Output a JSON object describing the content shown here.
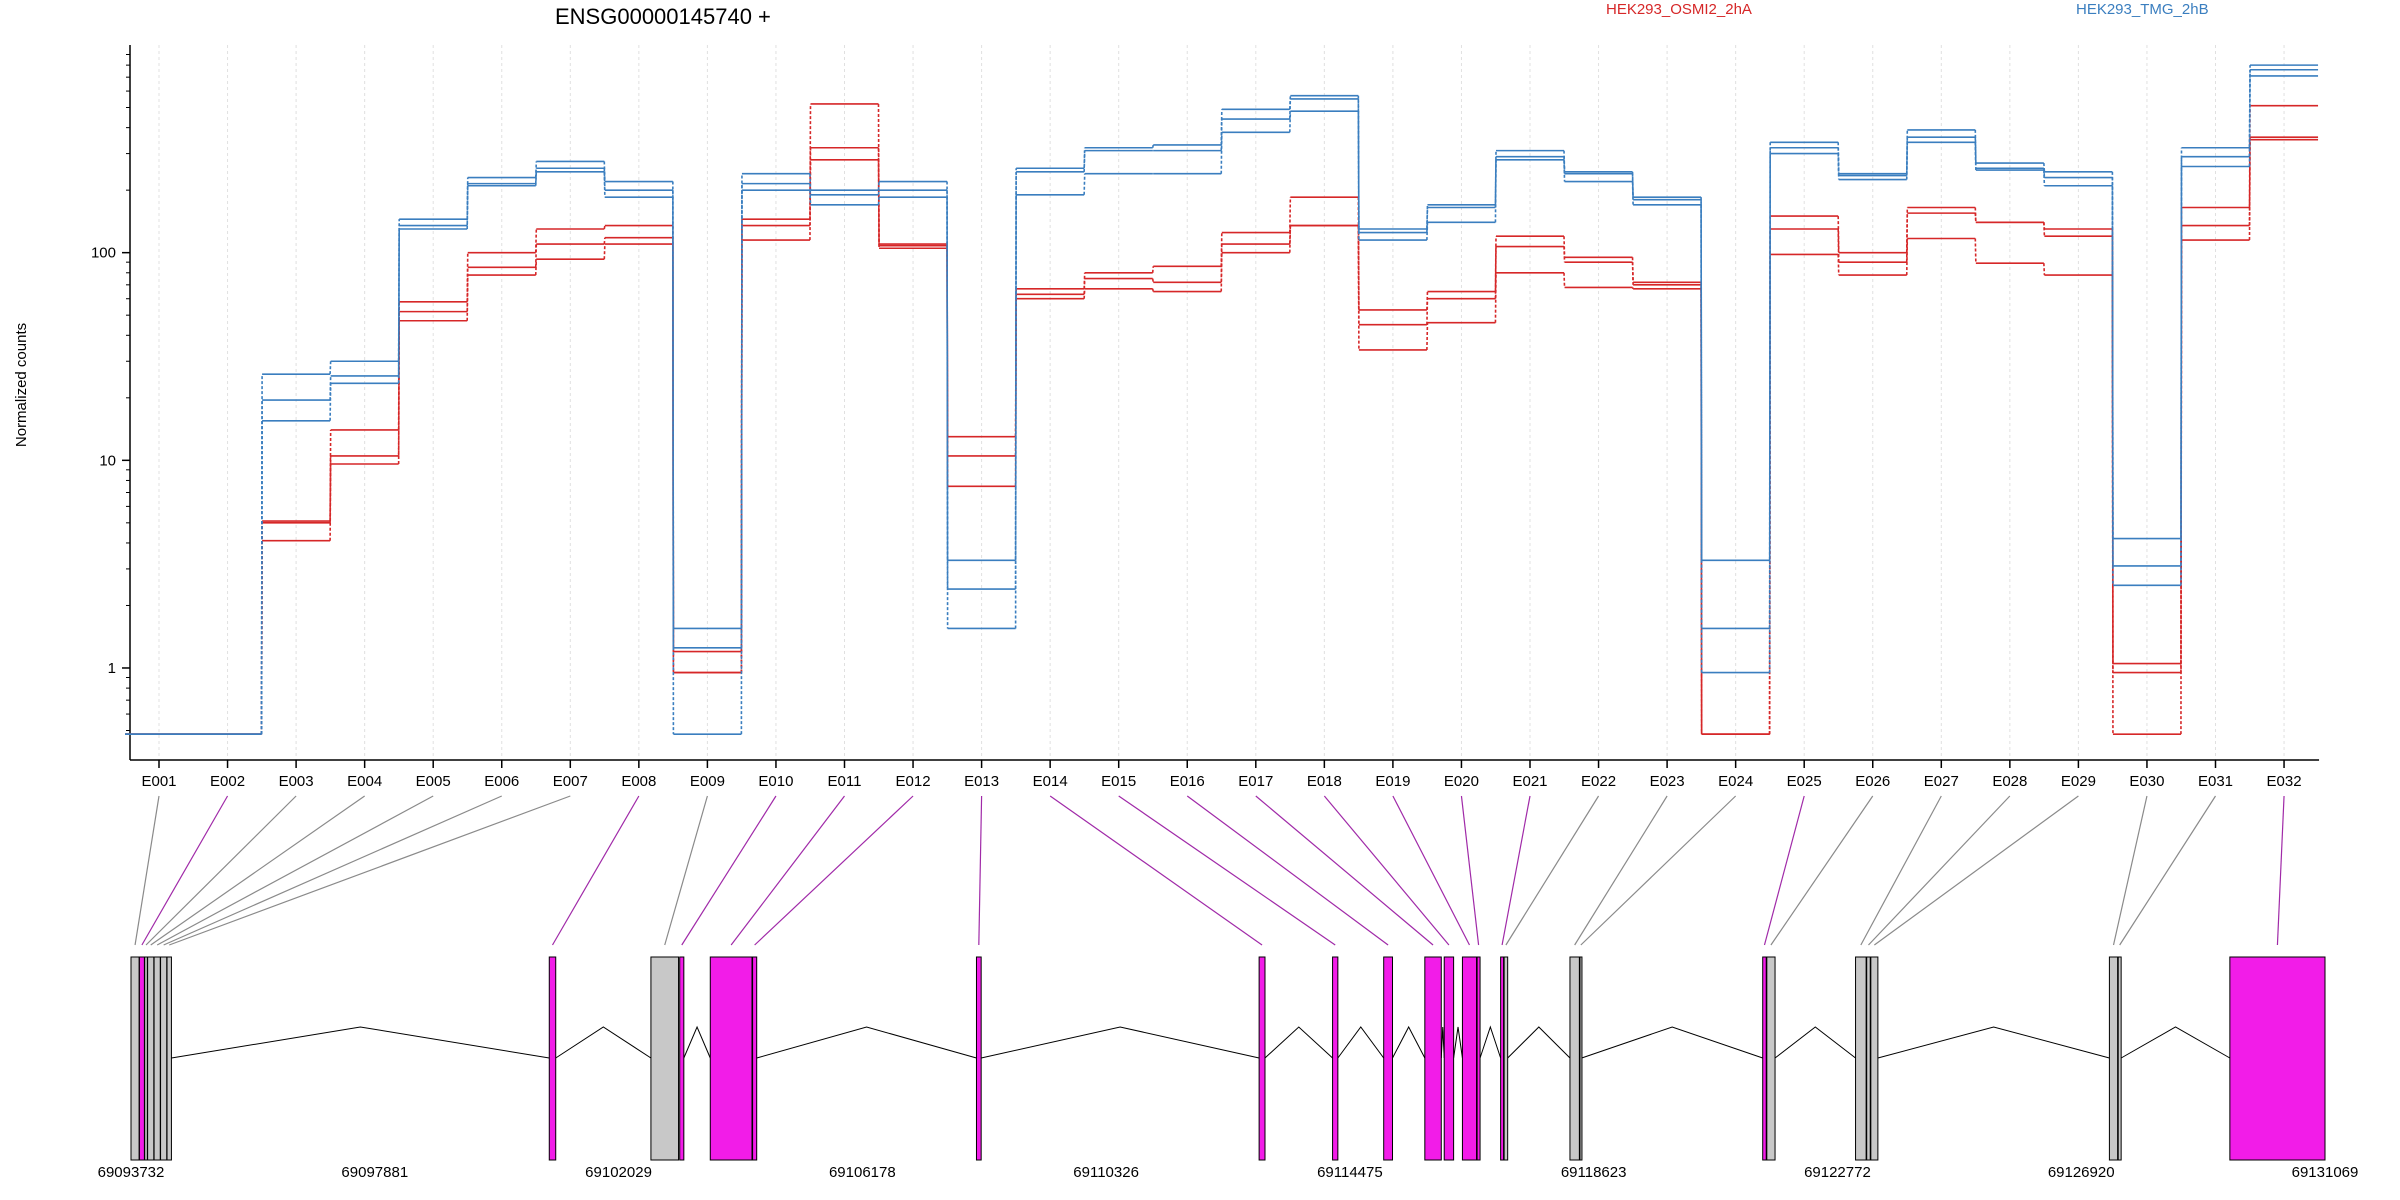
{
  "chart_data": {
    "type": "line",
    "title": "ENSG00000145740 +",
    "ylabel": "Normalized counts",
    "yscale": "log",
    "ylim": [
      0.45,
      1000
    ],
    "yticks": [
      1,
      10,
      100
    ],
    "ytick_labels": [
      "1",
      "10",
      "100"
    ],
    "grid": "vertical dotted at exon centers",
    "legend_placement": "top",
    "categories": [
      "E001",
      "E002",
      "E003",
      "E004",
      "E005",
      "E006",
      "E007",
      "E008",
      "E009",
      "E010",
      "E011",
      "E012",
      "E013",
      "E014",
      "E015",
      "E016",
      "E017",
      "E018",
      "E019",
      "E020",
      "E021",
      "E022",
      "E023",
      "E024",
      "E025",
      "E026",
      "E027",
      "E028",
      "E029",
      "E030",
      "E031",
      "E032"
    ],
    "groups": [
      {
        "name": "HEK293_OSMI2_2hA",
        "color": "#d62728"
      },
      {
        "name": "HEK293_TMG_2hB",
        "color": "#3a7ebf"
      }
    ],
    "series": [
      {
        "group": 0,
        "values": [
          0.48,
          0.48,
          5.1,
          14,
          58,
          100,
          130,
          135,
          1.2,
          145,
          520,
          105,
          13,
          67,
          80,
          86,
          125,
          185,
          53,
          65,
          120,
          95,
          72,
          0.48,
          150,
          100,
          165,
          140,
          130,
          1.05,
          165,
          510
        ]
      },
      {
        "group": 0,
        "values": [
          0.48,
          0.48,
          5.0,
          10.5,
          52,
          85,
          110,
          118,
          0.95,
          135,
          320,
          108,
          10.5,
          63,
          75,
          72,
          110,
          135,
          45,
          60,
          107,
          90,
          70,
          0.48,
          130,
          90,
          155,
          140,
          120,
          0.95,
          135,
          360
        ]
      },
      {
        "group": 0,
        "values": [
          0.48,
          0.48,
          4.1,
          9.6,
          47,
          78,
          93,
          110,
          0.95,
          115,
          280,
          110,
          7.5,
          60,
          67,
          65,
          100,
          135,
          34,
          46,
          80,
          68,
          67,
          0.48,
          98,
          78,
          117,
          89,
          78,
          0.48,
          115,
          350
        ]
      },
      {
        "group": 1,
        "values": [
          0.48,
          0.48,
          26,
          30,
          145,
          230,
          275,
          220,
          1.55,
          240,
          200,
          220,
          3.3,
          255,
          320,
          330,
          490,
          570,
          130,
          170,
          310,
          245,
          185,
          3.3,
          340,
          240,
          390,
          270,
          245,
          4.2,
          320,
          800
        ]
      },
      {
        "group": 1,
        "values": [
          0.48,
          0.48,
          19.5,
          25.5,
          135,
          215,
          255,
          200,
          1.25,
          215,
          190,
          200,
          2.4,
          245,
          310,
          310,
          440,
          550,
          125,
          165,
          290,
          240,
          180,
          1.55,
          320,
          235,
          360,
          255,
          230,
          3.1,
          290,
          760
        ]
      },
      {
        "group": 1,
        "values": [
          0.48,
          0.48,
          15.5,
          23.5,
          130,
          210,
          245,
          185,
          0.48,
          200,
          170,
          185,
          1.55,
          190,
          240,
          240,
          380,
          480,
          115,
          140,
          280,
          220,
          170,
          0.95,
          300,
          225,
          340,
          250,
          210,
          2.5,
          260,
          710
        ]
      }
    ],
    "gene_model": {
      "coordinate_ticks": [
        "69093732",
        "69097881",
        "69102029",
        "69106178",
        "69110326",
        "69114475",
        "69118623",
        "69122772",
        "69126920",
        "69131069"
      ],
      "coordinate_values": [
        69093732,
        69097881,
        69102029,
        69106178,
        69110326,
        69114475,
        69118623,
        69122772,
        69126920,
        69131069
      ],
      "exons": [
        {
          "id": "E001",
          "start": 69093732,
          "end": 69093870,
          "highlight": false
        },
        {
          "id": "E002",
          "start": 69093875,
          "end": 69093960,
          "highlight": true
        },
        {
          "id": "E003",
          "start": 69093965,
          "end": 69094010,
          "highlight": false
        },
        {
          "id": "E004",
          "start": 69094015,
          "end": 69094120,
          "highlight": false
        },
        {
          "id": "E005",
          "start": 69094125,
          "end": 69094230,
          "highlight": false
        },
        {
          "id": "E006",
          "start": 69094235,
          "end": 69094340,
          "highlight": false
        },
        {
          "id": "E007",
          "start": 69094345,
          "end": 69094420,
          "highlight": false
        },
        {
          "id": "E008",
          "start": 69100850,
          "end": 69100960,
          "highlight": true
        },
        {
          "id": "E009",
          "start": 69102580,
          "end": 69103050,
          "highlight": false
        },
        {
          "id": "E010",
          "start": 69103070,
          "end": 69103140,
          "highlight": true
        },
        {
          "id": "E011",
          "start": 69103590,
          "end": 69104300,
          "highlight": true
        },
        {
          "id": "E012",
          "start": 69104310,
          "end": 69104380,
          "highlight": true
        },
        {
          "id": "E013",
          "start": 69108120,
          "end": 69108200,
          "highlight": true
        },
        {
          "id": "E014",
          "start": 69112930,
          "end": 69113030,
          "highlight": true
        },
        {
          "id": "E015",
          "start": 69114180,
          "end": 69114270,
          "highlight": true
        },
        {
          "id": "E016",
          "start": 69115050,
          "end": 69115200,
          "highlight": true
        },
        {
          "id": "E017",
          "start": 69115750,
          "end": 69116030,
          "highlight": true
        },
        {
          "id": "E018",
          "start": 69116080,
          "end": 69116240,
          "highlight": true
        },
        {
          "id": "E019",
          "start": 69116390,
          "end": 69116630,
          "highlight": true
        },
        {
          "id": "E020",
          "start": 69116640,
          "end": 69116690,
          "highlight": true
        },
        {
          "id": "E021",
          "start": 69117040,
          "end": 69117090,
          "highlight": true
        },
        {
          "id": "E022",
          "start": 69117100,
          "end": 69117160,
          "highlight": false
        },
        {
          "id": "E023",
          "start": 69118220,
          "end": 69118380,
          "highlight": false
        },
        {
          "id": "E024",
          "start": 69118390,
          "end": 69118420,
          "highlight": false
        },
        {
          "id": "E025",
          "start": 69121500,
          "end": 69121560,
          "highlight": true
        },
        {
          "id": "E026",
          "start": 69121570,
          "end": 69121710,
          "highlight": false
        },
        {
          "id": "E027",
          "start": 69123080,
          "end": 69123260,
          "highlight": false
        },
        {
          "id": "E028",
          "start": 69123270,
          "end": 69123330,
          "highlight": false
        },
        {
          "id": "E029",
          "start": 69123340,
          "end": 69123460,
          "highlight": false
        },
        {
          "id": "E030",
          "start": 69127400,
          "end": 69127540,
          "highlight": false
        },
        {
          "id": "E031",
          "start": 69127550,
          "end": 69127600,
          "highlight": false
        },
        {
          "id": "E032",
          "start": 69129450,
          "end": 69131069,
          "highlight": true
        }
      ]
    }
  },
  "colors": {
    "osmi": "#d62728",
    "tmg": "#3a7ebf",
    "exon_highlight": "#f21ce8",
    "exon_plain": "#c8c8c8",
    "link_highlight": "#a02aa8",
    "link_plain": "#8a8a8a"
  }
}
